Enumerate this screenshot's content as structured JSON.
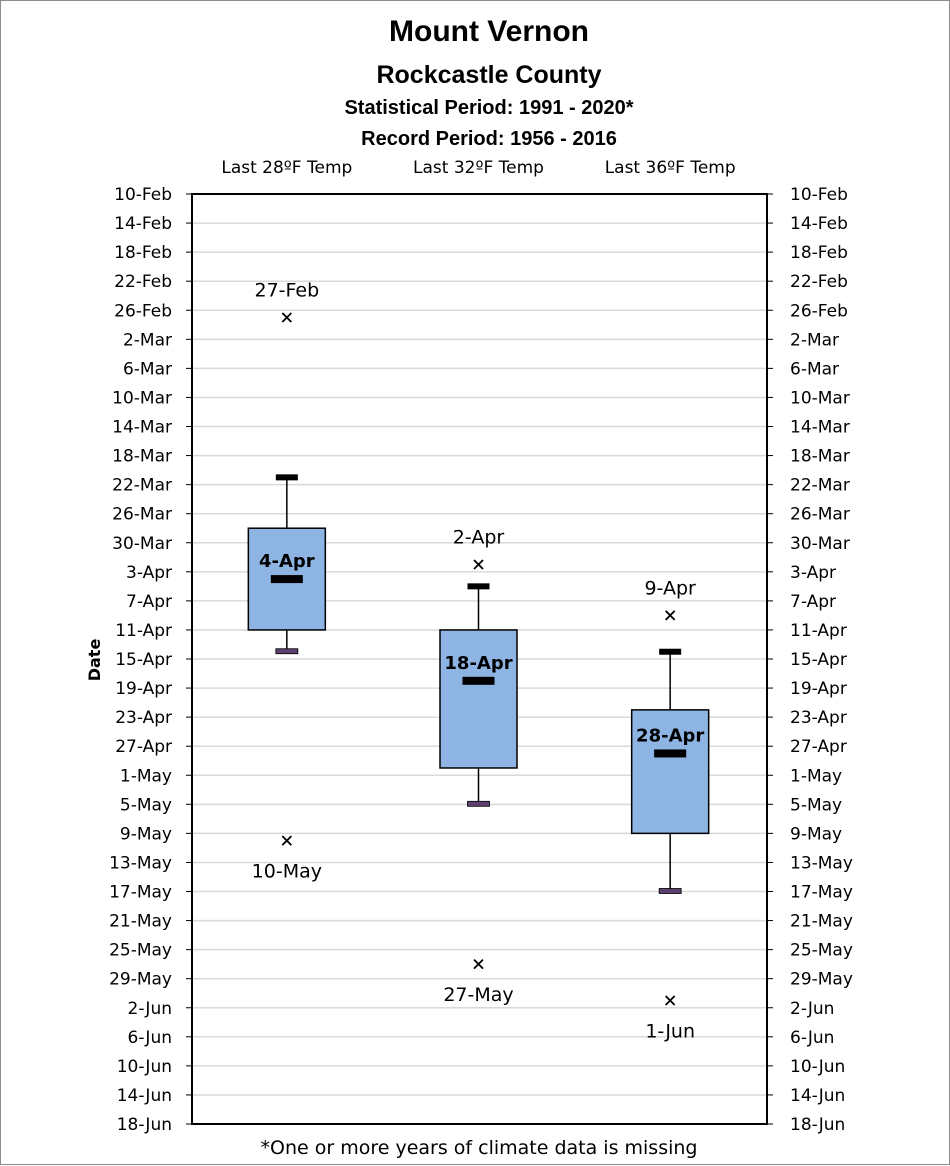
{
  "chart_data": {
    "type": "box",
    "title": "Mount Vernon",
    "subtitle": "Rockcastle County",
    "period_lines": [
      "Statistical Period: 1991 - 2020*",
      "Record Period: 1956 - 2016"
    ],
    "ylabel": "Date",
    "footnote": "*One or more years of climate data is missing",
    "y_axis": {
      "start": "10-Feb",
      "end": "18-Jun",
      "start_day_of_year": 41,
      "step_days": 4,
      "ticks": [
        "10-Feb",
        "14-Feb",
        "18-Feb",
        "22-Feb",
        "26-Feb",
        "2-Mar",
        "6-Mar",
        "10-Mar",
        "14-Mar",
        "18-Mar",
        "22-Mar",
        "26-Mar",
        "30-Mar",
        "3-Apr",
        "7-Apr",
        "11-Apr",
        "15-Apr",
        "19-Apr",
        "23-Apr",
        "27-Apr",
        "1-May",
        "5-May",
        "9-May",
        "13-May",
        "17-May",
        "21-May",
        "25-May",
        "29-May",
        "2-Jun",
        "6-Jun",
        "10-Jun",
        "14-Jun",
        "18-Jun"
      ],
      "direction": "top-to-bottom",
      "grid": true
    },
    "categories": [
      "Last 28ºF Temp",
      "Last 32ºF Temp",
      "Last 36ºF Temp"
    ],
    "series": [
      {
        "category": "Last 28ºF Temp",
        "whisker_low": "21-Mar",
        "q1": "28-Mar",
        "median": "4-Apr",
        "q3": "11-Apr",
        "whisker_high": "14-Apr",
        "record_early": "27-Feb",
        "record_late": "10-May",
        "whisker_low_doy": 80,
        "q1_doy": 87,
        "median_doy": 94,
        "q3_doy": 101,
        "whisker_high_doy": 104,
        "record_early_doy": 58,
        "record_late_doy": 130,
        "median_label": "4-Apr",
        "record_early_label": "27-Feb",
        "record_late_label": "10-May"
      },
      {
        "category": "Last 32ºF Temp",
        "whisker_low": "5-Apr",
        "q1": "11-Apr",
        "median": "18-Apr",
        "q3": "30-Apr",
        "whisker_high": "5-May",
        "record_early": "2-Apr",
        "record_late": "27-May",
        "whisker_low_doy": 95,
        "q1_doy": 101,
        "median_doy": 108,
        "q3_doy": 120,
        "whisker_high_doy": 125,
        "record_early_doy": 92,
        "record_late_doy": 147,
        "median_label": "18-Apr",
        "record_early_label": "2-Apr",
        "record_late_label": "27-May"
      },
      {
        "category": "Last 36ºF Temp",
        "whisker_low": "14-Apr",
        "q1": "22-Apr",
        "median": "28-Apr",
        "q3": "9-May",
        "whisker_high": "17-May",
        "record_early": "9-Apr",
        "record_late": "1-Jun",
        "whisker_low_doy": 104,
        "q1_doy": 112,
        "median_doy": 118,
        "q3_doy": 129,
        "whisker_high_doy": 137,
        "record_early_doy": 99,
        "record_late_doy": 152,
        "median_label": "28-Apr",
        "record_early_label": "9-Apr",
        "record_late_label": "1-Jun"
      }
    ],
    "colors": {
      "box_fill": "#8db4e2",
      "box_stroke": "#000000",
      "grid": "#d9d9d9",
      "whisker_end_low": "#5b3f6e"
    }
  }
}
